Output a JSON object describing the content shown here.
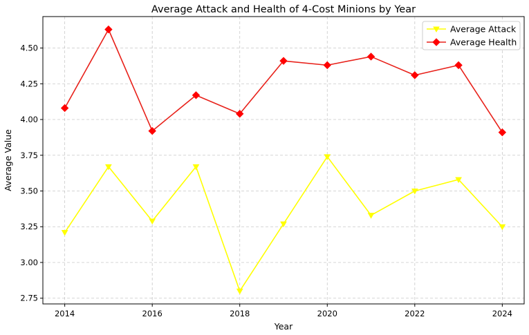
{
  "chart_data": {
    "type": "line",
    "title": "Average Attack and Health of 4-Cost Minions by Year",
    "xlabel": "Year",
    "ylabel": "Average Value",
    "x": [
      2014,
      2015,
      2016,
      2017,
      2018,
      2019,
      2020,
      2021,
      2022,
      2023,
      2024
    ],
    "xlim": [
      2013.5,
      2024.5
    ],
    "ylim": [
      2.71,
      4.72
    ],
    "xticks": [
      2014,
      2016,
      2018,
      2020,
      2022,
      2024
    ],
    "xtick_labels": [
      "2014",
      "2016",
      "2018",
      "2020",
      "2022",
      "2024"
    ],
    "yticks": [
      2.75,
      3.0,
      3.25,
      3.5,
      3.75,
      4.0,
      4.25,
      4.5
    ],
    "ytick_labels": [
      "2.75",
      "3.00",
      "3.25",
      "3.50",
      "3.75",
      "4.00",
      "4.25",
      "4.50"
    ],
    "grid": true,
    "legend_position": "top-right",
    "series": [
      {
        "name": "Average Attack",
        "color": "#ffff00",
        "marker": "triangle-down",
        "values": [
          3.21,
          3.67,
          3.29,
          3.67,
          2.8,
          3.27,
          3.74,
          3.33,
          3.5,
          3.58,
          3.25
        ]
      },
      {
        "name": "Average Health",
        "color": "#ff0000",
        "line_color": "#e8211a",
        "marker": "diamond",
        "values": [
          4.08,
          4.63,
          3.92,
          4.17,
          4.04,
          4.41,
          4.38,
          4.44,
          4.31,
          4.38,
          3.91
        ]
      }
    ]
  }
}
